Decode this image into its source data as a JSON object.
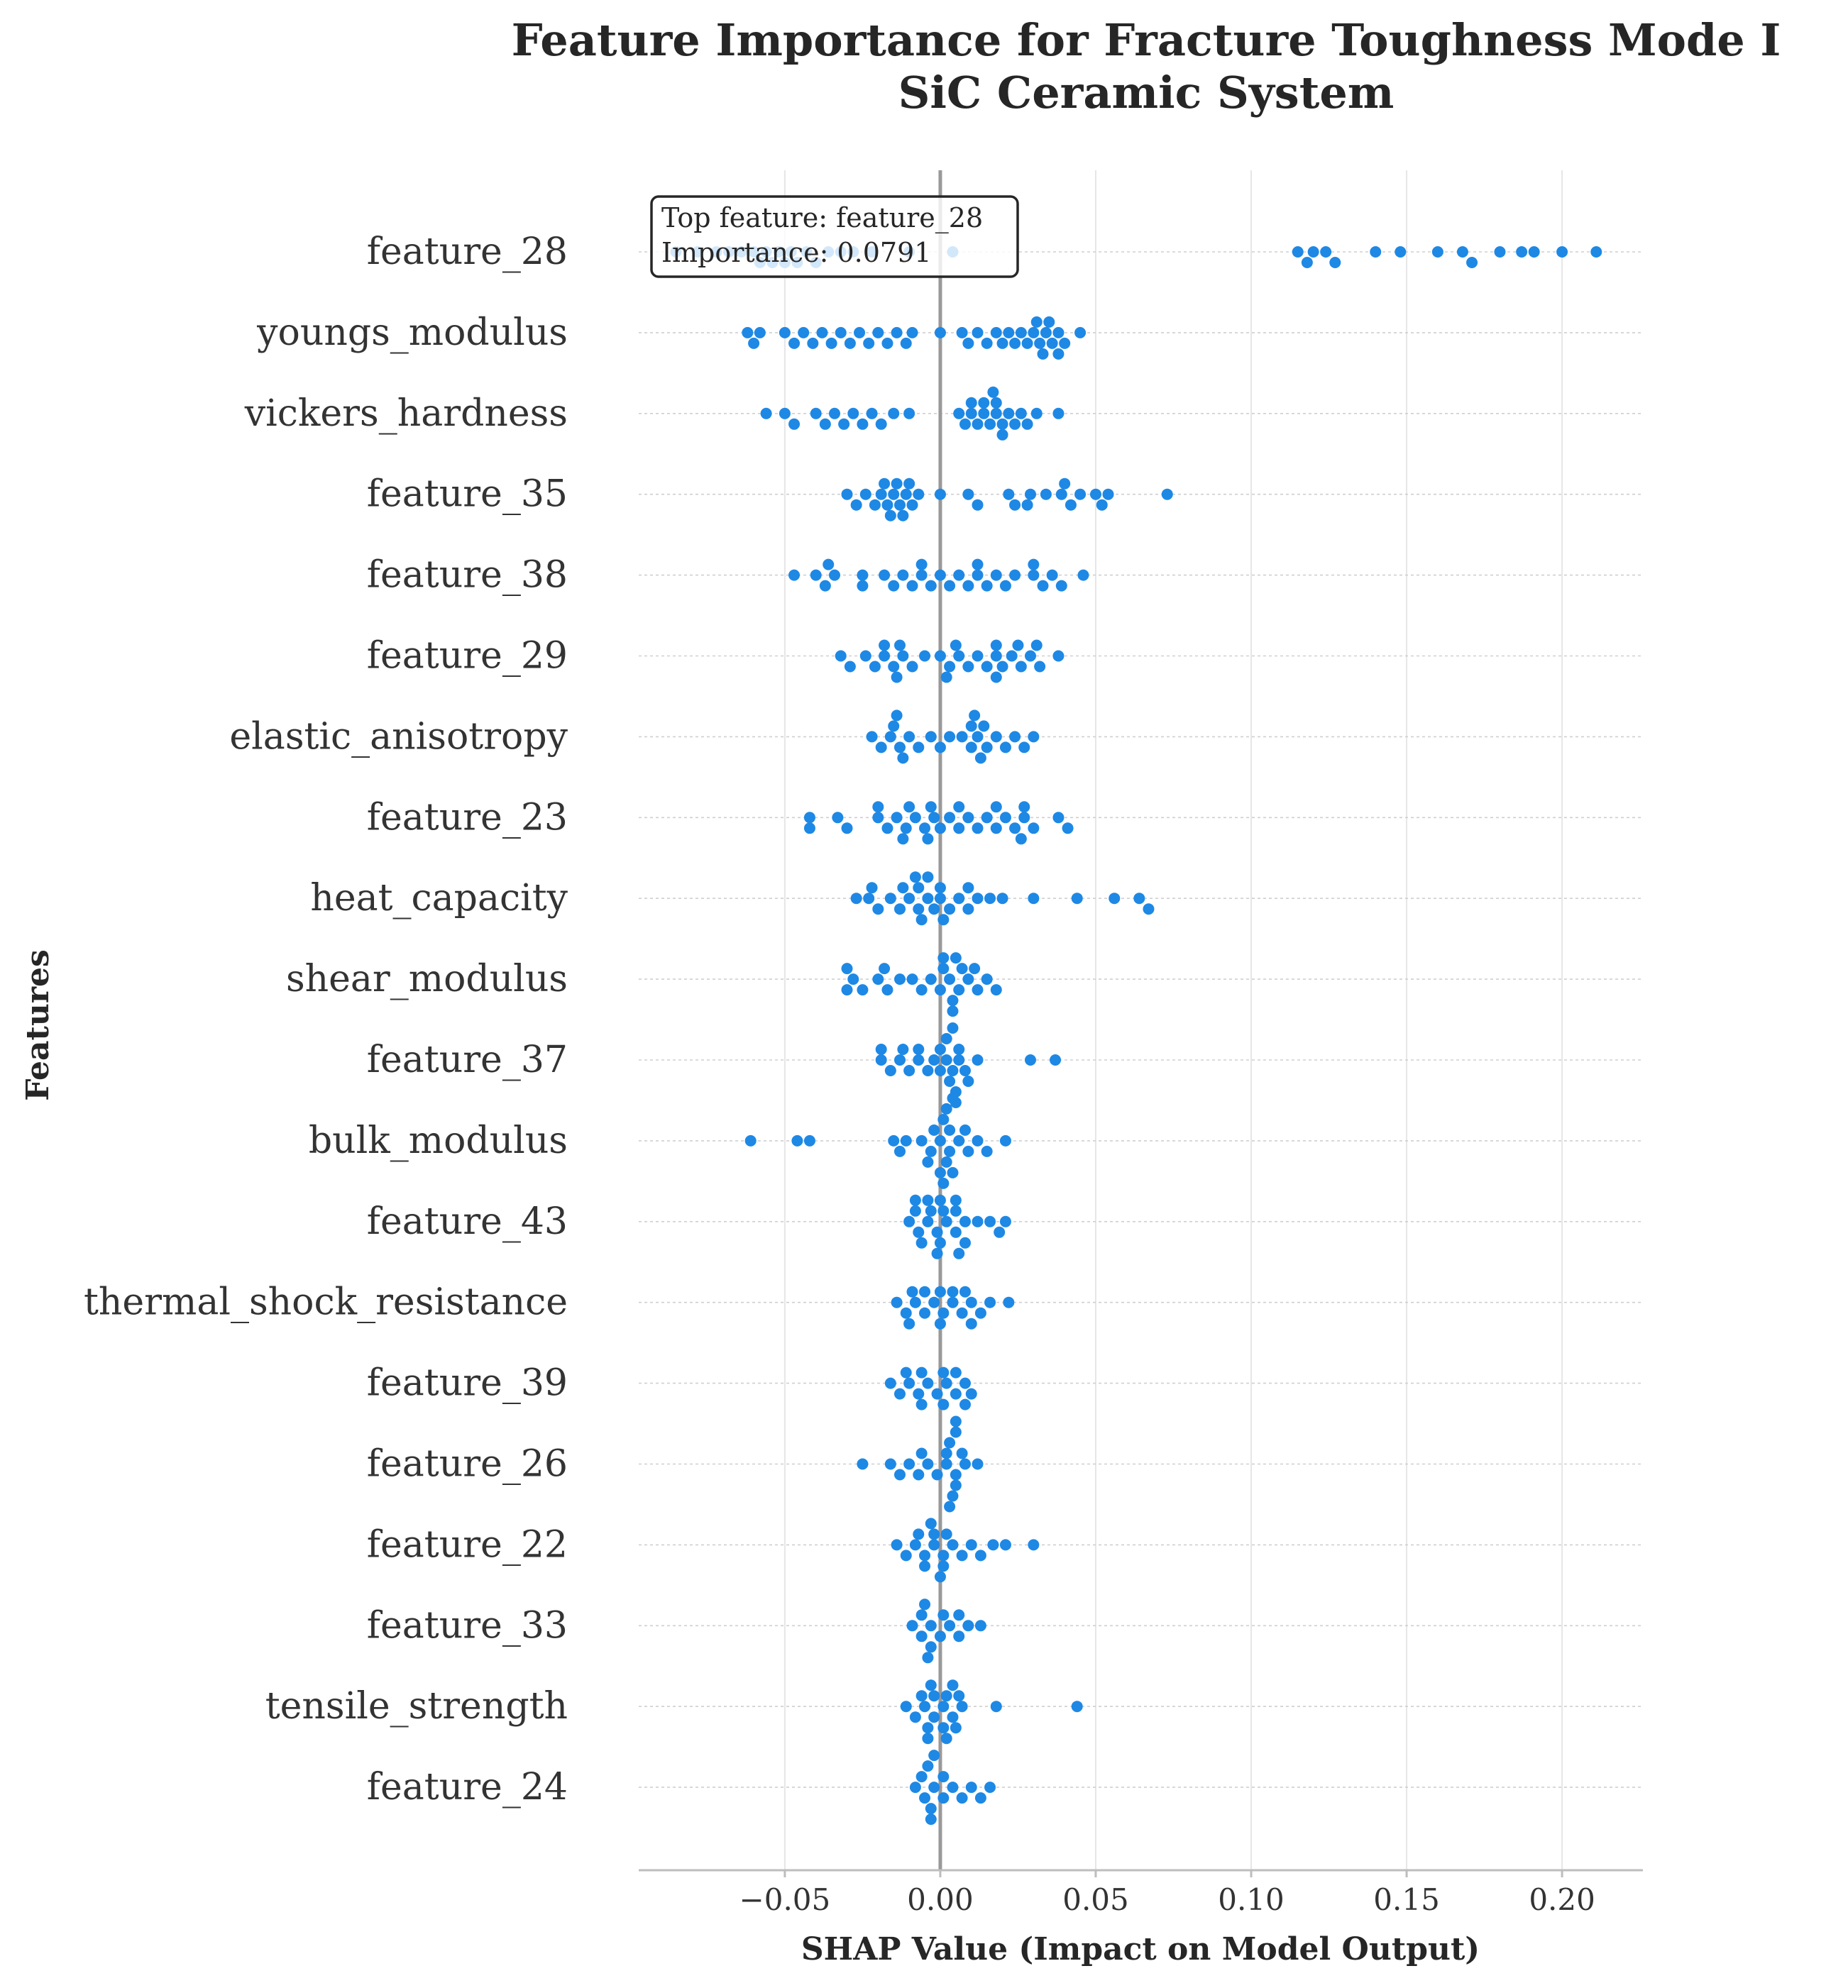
{
  "chart_data": {
    "type": "scatter",
    "subtype": "shap-beeswarm",
    "title": "Feature Importance for Fracture Toughness Mode I",
    "subtitle": "SiC Ceramic System",
    "xlabel": "SHAP Value (Impact on Model Output)",
    "ylabel": "Features",
    "xlim": [
      -0.097,
      0.226
    ],
    "x_ticks": [
      -0.05,
      0.0,
      0.05,
      0.1,
      0.15,
      0.2
    ],
    "x_tick_labels": [
      "−0.05",
      "0.00",
      "0.05",
      "0.10",
      "0.15",
      "0.20"
    ],
    "grid": true,
    "point_color": "#1E88E5",
    "zero_line_color": "#999999",
    "annotation": {
      "lines": [
        "Top feature: feature_28",
        "Importance: 0.0791"
      ]
    },
    "features": [
      {
        "name": "feature_28",
        "values": [
          -0.085,
          -0.078,
          -0.072,
          -0.068,
          -0.064,
          -0.06,
          -0.058,
          -0.056,
          -0.054,
          -0.052,
          -0.05,
          -0.048,
          -0.046,
          -0.043,
          -0.04,
          -0.036,
          -0.032,
          -0.028,
          -0.022,
          -0.01,
          0.004,
          0.115,
          0.118,
          0.12,
          0.124,
          0.127,
          0.14,
          0.148,
          0.16,
          0.168,
          0.171,
          0.18,
          0.187,
          0.191,
          0.2,
          0.211
        ]
      },
      {
        "name": "youngs_modulus",
        "values": [
          -0.062,
          -0.05,
          -0.047,
          -0.044,
          -0.041,
          -0.038,
          -0.035,
          -0.032,
          -0.029,
          -0.026,
          -0.023,
          -0.02,
          -0.017,
          -0.014,
          -0.011,
          -0.009,
          0.0,
          0.007,
          0.009,
          0.012,
          0.015,
          0.018,
          0.02,
          0.022,
          0.024,
          0.026,
          0.028,
          0.03,
          0.032,
          0.034,
          0.036,
          0.038,
          0.04,
          0.045,
          -0.06,
          -0.058,
          0.031,
          0.033,
          0.035,
          0.038
        ]
      },
      {
        "name": "vickers_hardness",
        "values": [
          -0.056,
          -0.05,
          -0.047,
          -0.04,
          -0.037,
          -0.034,
          -0.031,
          -0.028,
          -0.025,
          -0.022,
          -0.019,
          -0.015,
          -0.01,
          0.006,
          0.008,
          0.01,
          0.012,
          0.014,
          0.016,
          0.018,
          0.02,
          0.022,
          0.024,
          0.026,
          0.028,
          0.031,
          0.038,
          0.01,
          0.014,
          0.018,
          0.02,
          0.017
        ]
      },
      {
        "name": "feature_35",
        "values": [
          -0.03,
          -0.027,
          -0.024,
          -0.021,
          -0.019,
          -0.017,
          -0.015,
          -0.013,
          -0.011,
          -0.009,
          -0.007,
          -0.018,
          -0.014,
          -0.01,
          -0.016,
          -0.012,
          0.0,
          0.009,
          0.012,
          0.022,
          0.024,
          0.029,
          0.034,
          0.039,
          0.042,
          0.045,
          0.05,
          0.054,
          0.073,
          0.028,
          0.04,
          0.052
        ]
      },
      {
        "name": "feature_38",
        "values": [
          -0.047,
          -0.04,
          -0.037,
          -0.034,
          -0.025,
          -0.018,
          -0.015,
          -0.012,
          -0.009,
          -0.006,
          -0.003,
          0.0,
          0.003,
          0.006,
          0.009,
          0.012,
          0.015,
          0.018,
          0.021,
          0.024,
          0.03,
          0.033,
          0.036,
          0.039,
          0.046,
          -0.036,
          -0.025,
          -0.006,
          0.012,
          0.03
        ]
      },
      {
        "name": "feature_29",
        "values": [
          -0.032,
          -0.029,
          -0.024,
          -0.021,
          -0.018,
          -0.015,
          -0.012,
          -0.009,
          -0.005,
          0.0,
          0.003,
          0.006,
          0.009,
          0.012,
          0.015,
          0.018,
          0.02,
          0.023,
          0.026,
          0.029,
          0.032,
          0.038,
          -0.018,
          -0.013,
          0.005,
          0.018,
          0.025,
          0.031,
          -0.014,
          0.002,
          0.018
        ]
      },
      {
        "name": "elastic_anisotropy",
        "values": [
          -0.022,
          -0.019,
          -0.016,
          -0.013,
          -0.01,
          -0.007,
          -0.003,
          0.0,
          0.003,
          0.007,
          0.01,
          0.012,
          0.015,
          0.018,
          0.021,
          0.024,
          0.027,
          0.03,
          -0.015,
          -0.012,
          0.01,
          0.013,
          -0.014,
          0.011,
          0.014
        ]
      },
      {
        "name": "feature_23",
        "values": [
          -0.042,
          -0.033,
          -0.03,
          -0.02,
          -0.017,
          -0.014,
          -0.011,
          -0.008,
          -0.005,
          -0.002,
          0.0,
          0.003,
          0.006,
          0.009,
          0.012,
          0.015,
          0.018,
          0.021,
          0.024,
          0.027,
          0.03,
          0.038,
          0.041,
          -0.042,
          -0.02,
          -0.01,
          -0.003,
          0.006,
          0.018,
          0.027,
          -0.012,
          -0.004,
          0.026
        ]
      },
      {
        "name": "heat_capacity",
        "values": [
          -0.027,
          -0.023,
          -0.02,
          -0.016,
          -0.013,
          -0.01,
          -0.007,
          -0.004,
          -0.002,
          0.0,
          0.003,
          0.006,
          0.009,
          0.012,
          0.016,
          0.02,
          0.03,
          0.044,
          0.056,
          0.064,
          0.067,
          -0.022,
          -0.012,
          -0.007,
          0.0,
          0.009,
          -0.006,
          -0.004,
          -0.008,
          0.001
        ]
      },
      {
        "name": "shear_modulus",
        "values": [
          -0.028,
          -0.025,
          -0.02,
          -0.017,
          -0.013,
          -0.009,
          -0.006,
          -0.003,
          0.0,
          0.003,
          0.006,
          0.009,
          0.012,
          0.015,
          0.018,
          -0.03,
          -0.018,
          0.001,
          0.004,
          0.007,
          0.011,
          -0.03,
          0.001,
          0.005,
          0.004
        ]
      },
      {
        "name": "feature_37",
        "values": [
          -0.019,
          -0.016,
          -0.013,
          -0.01,
          -0.007,
          -0.004,
          -0.002,
          0.0,
          0.002,
          0.004,
          0.006,
          0.008,
          0.012,
          0.029,
          0.037,
          -0.019,
          -0.012,
          -0.007,
          0.0,
          0.003,
          0.006,
          0.009,
          0.002,
          0.005,
          0.004,
          0.005
        ]
      },
      {
        "name": "bulk_modulus",
        "values": [
          -0.061,
          -0.046,
          -0.042,
          -0.015,
          -0.011,
          -0.006,
          -0.003,
          0.0,
          0.003,
          0.006,
          0.009,
          0.012,
          0.015,
          0.021,
          -0.013,
          -0.002,
          0.003,
          0.008,
          0.002,
          -0.004,
          0.001,
          0.004,
          0.002,
          0.001,
          0.004,
          0.0
        ]
      },
      {
        "name": "feature_43",
        "values": [
          -0.01,
          -0.007,
          -0.004,
          -0.001,
          0.002,
          0.005,
          0.008,
          0.012,
          0.016,
          0.019,
          0.021,
          -0.008,
          -0.003,
          0.001,
          0.005,
          0.008,
          -0.006,
          0.0,
          0.005,
          0.006,
          -0.004,
          -0.001,
          -0.008,
          0.0
        ]
      },
      {
        "name": "thermal_shock_resistance",
        "values": [
          -0.014,
          -0.011,
          -0.008,
          -0.005,
          -0.002,
          0.001,
          0.004,
          0.007,
          0.01,
          0.013,
          0.016,
          0.022,
          -0.009,
          -0.005,
          0.0,
          0.004,
          0.008,
          0.01,
          -0.01,
          0.0
        ]
      },
      {
        "name": "feature_39",
        "values": [
          -0.016,
          -0.013,
          -0.01,
          -0.007,
          -0.004,
          -0.001,
          0.002,
          0.005,
          0.008,
          0.01,
          -0.011,
          -0.006,
          0.001,
          0.005,
          0.008,
          -0.006,
          0.001
        ]
      },
      {
        "name": "feature_26",
        "values": [
          -0.025,
          -0.016,
          -0.013,
          -0.01,
          -0.007,
          -0.004,
          -0.001,
          0.002,
          0.005,
          0.008,
          0.012,
          -0.006,
          0.002,
          0.005,
          0.003,
          0.007,
          0.004,
          0.005,
          0.003,
          0.005
        ]
      },
      {
        "name": "feature_22",
        "values": [
          -0.014,
          -0.011,
          -0.008,
          -0.005,
          -0.002,
          0.001,
          0.004,
          0.007,
          0.01,
          0.013,
          0.017,
          0.021,
          0.03,
          -0.007,
          -0.002,
          0.002,
          -0.005,
          0.001,
          -0.003,
          0.0
        ]
      },
      {
        "name": "feature_33",
        "values": [
          -0.009,
          -0.006,
          -0.003,
          0.0,
          0.003,
          0.006,
          0.009,
          0.013,
          -0.006,
          -0.003,
          0.001,
          0.006,
          -0.005,
          -0.004
        ]
      },
      {
        "name": "tensile_strength",
        "values": [
          -0.011,
          -0.008,
          -0.005,
          -0.002,
          0.001,
          0.004,
          0.007,
          0.018,
          0.044,
          -0.006,
          -0.002,
          0.002,
          0.006,
          -0.004,
          0.001,
          0.005,
          -0.003,
          0.004,
          -0.004,
          0.002
        ]
      },
      {
        "name": "feature_24",
        "values": [
          -0.008,
          -0.005,
          -0.002,
          0.001,
          0.004,
          0.007,
          0.01,
          0.013,
          0.016,
          -0.006,
          -0.003,
          0.001,
          -0.004,
          -0.003,
          -0.002
        ]
      }
    ]
  }
}
